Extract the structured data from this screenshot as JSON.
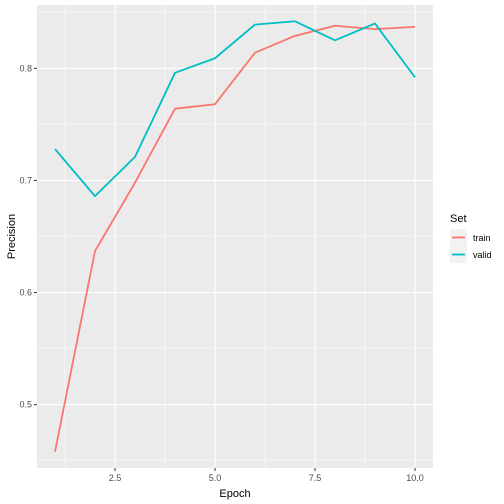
{
  "chart_data": {
    "type": "line",
    "xlabel": "Epoch",
    "ylabel": "Precision",
    "xlim": [
      0.55,
      10.45
    ],
    "ylim": [
      0.4435,
      0.8565
    ],
    "x_ticks": [
      2.5,
      5.0,
      7.5,
      10.0
    ],
    "x_tick_labels": [
      "2.5",
      "5.0",
      "7.5",
      "10.0"
    ],
    "y_ticks": [
      0.5,
      0.6,
      0.7,
      0.8
    ],
    "y_tick_labels": [
      "0.5",
      "0.6",
      "0.7",
      "0.8"
    ],
    "grid": true,
    "legend": {
      "title": "Set",
      "placement": "right"
    },
    "x": [
      1,
      2,
      3,
      4,
      5,
      6,
      7,
      8,
      9,
      10
    ],
    "series": [
      {
        "name": "train",
        "color": "#F8766D",
        "values": [
          0.458,
          0.637,
          0.698,
          0.764,
          0.768,
          0.814,
          0.829,
          0.838,
          0.835,
          0.837
        ]
      },
      {
        "name": "valid",
        "color": "#00BFC4",
        "values": [
          0.728,
          0.686,
          0.721,
          0.796,
          0.809,
          0.839,
          0.842,
          0.825,
          0.84,
          0.792
        ]
      }
    ]
  }
}
